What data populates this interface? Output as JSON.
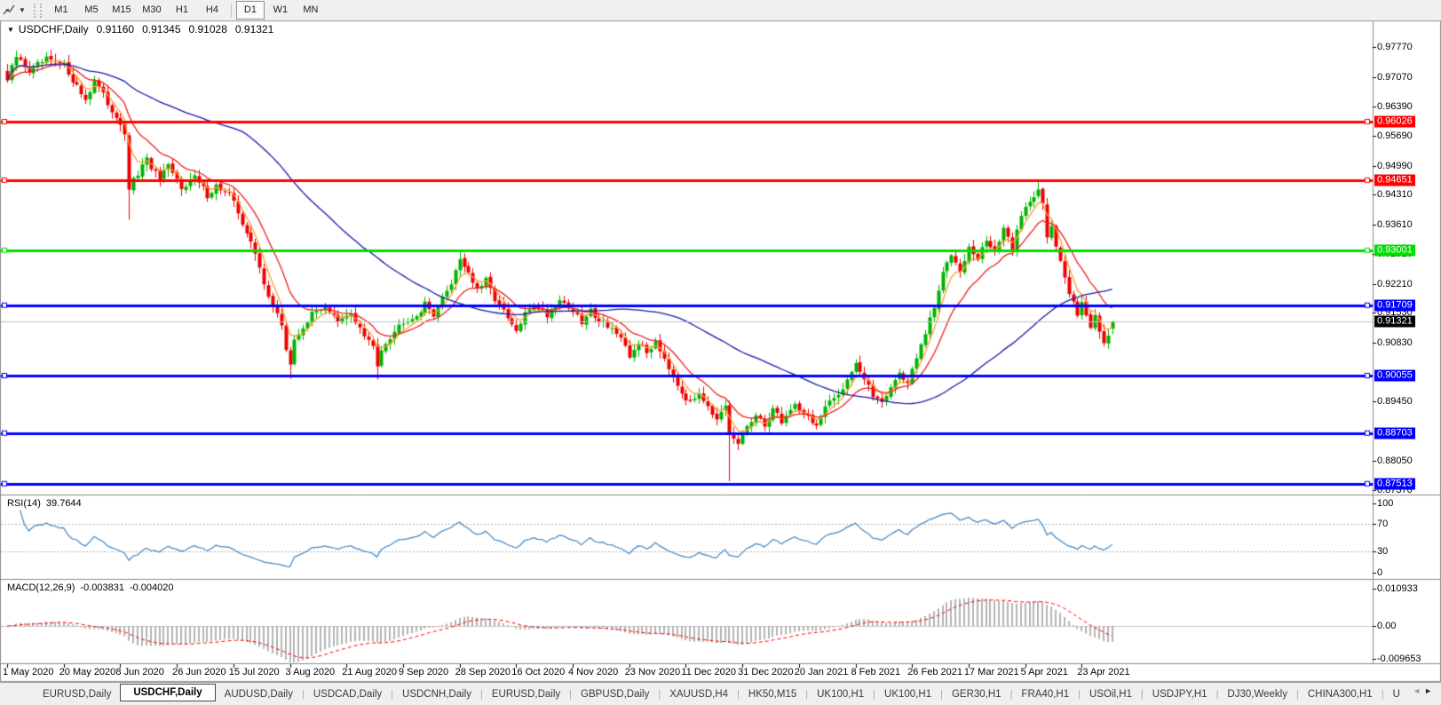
{
  "ui": {
    "toolbar": {
      "tool_icon": "line-studies",
      "timeframes": [
        "M1",
        "M5",
        "M15",
        "M30",
        "H1",
        "H4",
        "D1",
        "W1",
        "MN"
      ],
      "active_timeframe": "D1"
    },
    "title": {
      "collapse_icon": "▼",
      "symbol": "USDCHF,Daily",
      "open": "0.91160",
      "high": "0.91345",
      "low": "0.91028",
      "close": "0.91321"
    },
    "tabs": {
      "items": [
        "EURUSD,Daily",
        "USDCHF,Daily",
        "AUDUSD,Daily",
        "USDCAD,Daily",
        "USDCNH,Daily",
        "EURUSD,Daily",
        "GBPUSD,Daily",
        "XAUUSD,H4",
        "HK50,M15",
        "UK100,H1",
        "UK100,H1",
        "GER30,H1",
        "FRA40,H1",
        "USOil,H1",
        "USDJPY,H1",
        "DJ30,Weekly",
        "CHINA300,H1",
        "U"
      ],
      "active_index": 1,
      "scroll_left": "◄",
      "scroll_right": "►"
    }
  },
  "chart_data": {
    "type": "candlestick",
    "symbol": "USDCHF",
    "timeframe": "Daily",
    "current_candle": {
      "open": 0.9116,
      "high": 0.91345,
      "low": 0.91028,
      "close": 0.91321
    },
    "candle_count": 255,
    "colors": {
      "bull": "#00b400",
      "bear": "#f00000",
      "background": "#ffffff"
    },
    "close_anchors": [
      [
        0,
        0.97
      ],
      [
        2,
        0.9755
      ],
      [
        5,
        0.9722
      ],
      [
        9,
        0.9748
      ],
      [
        13,
        0.9735
      ],
      [
        16,
        0.9685
      ],
      [
        18,
        0.9655
      ],
      [
        20,
        0.97
      ],
      [
        23,
        0.9645
      ],
      [
        26,
        0.96
      ],
      [
        27,
        0.9565
      ],
      [
        28,
        0.9445
      ],
      [
        30,
        0.948
      ],
      [
        32,
        0.9512
      ],
      [
        35,
        0.9465
      ],
      [
        37,
        0.9495
      ],
      [
        40,
        0.945
      ],
      [
        43,
        0.9472
      ],
      [
        46,
        0.943
      ],
      [
        48,
        0.9452
      ],
      [
        51,
        0.943
      ],
      [
        53,
        0.939
      ],
      [
        55,
        0.9342
      ],
      [
        57,
        0.929
      ],
      [
        59,
        0.9225
      ],
      [
        61,
        0.9168
      ],
      [
        63,
        0.9125
      ],
      [
        64,
        0.9068
      ],
      [
        65,
        0.9032
      ],
      [
        66,
        0.9085
      ],
      [
        68,
        0.9122
      ],
      [
        70,
        0.9148
      ],
      [
        73,
        0.9172
      ],
      [
        76,
        0.9128
      ],
      [
        79,
        0.9152
      ],
      [
        82,
        0.9098
      ],
      [
        84,
        0.9072
      ],
      [
        85,
        0.9028
      ],
      [
        86,
        0.9072
      ],
      [
        88,
        0.9098
      ],
      [
        91,
        0.9135
      ],
      [
        94,
        0.9148
      ],
      [
        96,
        0.9172
      ],
      [
        98,
        0.9152
      ],
      [
        100,
        0.9185
      ],
      [
        102,
        0.9225
      ],
      [
        104,
        0.9282
      ],
      [
        106,
        0.9248
      ],
      [
        108,
        0.9205
      ],
      [
        110,
        0.9228
      ],
      [
        112,
        0.9188
      ],
      [
        115,
        0.9138
      ],
      [
        117,
        0.9108
      ],
      [
        119,
        0.9148
      ],
      [
        121,
        0.9175
      ],
      [
        124,
        0.9148
      ],
      [
        127,
        0.9185
      ],
      [
        130,
        0.9158
      ],
      [
        132,
        0.9128
      ],
      [
        134,
        0.9158
      ],
      [
        136,
        0.9138
      ],
      [
        139,
        0.9118
      ],
      [
        141,
        0.9088
      ],
      [
        143,
        0.9048
      ],
      [
        145,
        0.9085
      ],
      [
        147,
        0.9058
      ],
      [
        149,
        0.9088
      ],
      [
        151,
        0.9048
      ],
      [
        153,
        0.9008
      ],
      [
        155,
        0.8968
      ],
      [
        157,
        0.8938
      ],
      [
        159,
        0.8968
      ],
      [
        161,
        0.8938
      ],
      [
        163,
        0.8898
      ],
      [
        165,
        0.8928
      ],
      [
        166,
        0.8868
      ],
      [
        168,
        0.8842
      ],
      [
        170,
        0.8888
      ],
      [
        172,
        0.8908
      ],
      [
        174,
        0.8888
      ],
      [
        176,
        0.8928
      ],
      [
        178,
        0.8898
      ],
      [
        181,
        0.8938
      ],
      [
        184,
        0.8908
      ],
      [
        186,
        0.8888
      ],
      [
        188,
        0.8928
      ],
      [
        191,
        0.8962
      ],
      [
        193,
        0.8998
      ],
      [
        195,
        0.9038
      ],
      [
        197,
        0.8995
      ],
      [
        199,
        0.8958
      ],
      [
        201,
        0.8948
      ],
      [
        203,
        0.8978
      ],
      [
        205,
        0.9012
      ],
      [
        207,
        0.8988
      ],
      [
        209,
        0.9045
      ],
      [
        211,
        0.9105
      ],
      [
        213,
        0.9165
      ],
      [
        215,
        0.9245
      ],
      [
        217,
        0.9295
      ],
      [
        219,
        0.9258
      ],
      [
        221,
        0.9305
      ],
      [
        223,
        0.9278
      ],
      [
        225,
        0.9325
      ],
      [
        227,
        0.9298
      ],
      [
        229,
        0.9345
      ],
      [
        231,
        0.9308
      ],
      [
        233,
        0.9385
      ],
      [
        235,
        0.9415
      ],
      [
        237,
        0.9448
      ],
      [
        238,
        0.9415
      ],
      [
        239,
        0.933
      ],
      [
        240,
        0.9352
      ],
      [
        241,
        0.9305
      ],
      [
        242,
        0.9275
      ],
      [
        243,
        0.9235
      ],
      [
        244,
        0.9205
      ],
      [
        245,
        0.9185
      ],
      [
        246,
        0.9152
      ],
      [
        247,
        0.9175
      ],
      [
        248,
        0.9145
      ],
      [
        249,
        0.9122
      ],
      [
        250,
        0.9152
      ],
      [
        251,
        0.9112
      ],
      [
        252,
        0.9088
      ],
      [
        253,
        0.9098
      ],
      [
        254,
        0.91321
      ]
    ],
    "ohlc_overrides": [
      {
        "i": 28,
        "low": 0.9372
      },
      {
        "i": 65,
        "low": 0.8998
      },
      {
        "i": 85,
        "low": 0.8996
      },
      {
        "i": 104,
        "high": 0.9297
      },
      {
        "i": 166,
        "low": 0.8757
      },
      {
        "i": 237,
        "high": 0.94651
      },
      {
        "i": 254,
        "open": 0.9116,
        "high": 0.91345,
        "low": 0.91028,
        "close": 0.91321
      }
    ],
    "moving_averages": [
      {
        "name": "fast",
        "type": "ema",
        "period": 5,
        "color": "#ff9d2e"
      },
      {
        "name": "medium",
        "type": "ema",
        "period": 13,
        "color": "#ee2020"
      },
      {
        "name": "slow",
        "type": "sma",
        "period": 55,
        "color": "#1a1aae"
      }
    ],
    "levels": [
      {
        "price": 0.96026,
        "color": "#ff0000"
      },
      {
        "price": 0.94651,
        "color": "#ff0000"
      },
      {
        "price": 0.93001,
        "color": "#00dd00"
      },
      {
        "price": 0.91709,
        "color": "#0000ff"
      },
      {
        "price": 0.90055,
        "color": "#0000ff"
      },
      {
        "price": 0.88703,
        "color": "#0000ff"
      },
      {
        "price": 0.87513,
        "color": "#0000ff"
      }
    ],
    "current_price": {
      "value": 0.91321,
      "line_color": "#c0c0c0",
      "label_bg": "#000000"
    },
    "price_axis_ticks": [
      0.9777,
      0.9707,
      0.9639,
      0.9569,
      0.9499,
      0.9431,
      0.9361,
      0.9291,
      0.9221,
      0.9153,
      0.9083,
      0.8945,
      0.8805,
      0.8737
    ],
    "date_labels": [
      "1 May 2020",
      "20 May 2020",
      "8 Jun 2020",
      "26 Jun 2020",
      "15 Jul 2020",
      "3 Aug 2020",
      "21 Aug 2020",
      "9 Sep 2020",
      "28 Sep 2020",
      "16 Oct 2020",
      "4 Nov 2020",
      "23 Nov 2020",
      "11 Dec 2020",
      "31 Dec 2020",
      "20 Jan 2021",
      "8 Feb 2021",
      "26 Feb 2021",
      "17 Mar 2021",
      "5 Apr 2021",
      "23 Apr 2021"
    ],
    "indicators": {
      "rsi": {
        "label": "RSI(14)",
        "value": "39.7644",
        "period": 14,
        "axis_ticks": [
          100,
          70,
          30,
          0
        ],
        "dashed_levels": [
          70,
          30
        ],
        "line_color": "#3e86c6"
      },
      "macd": {
        "label": "MACD(12,26,9)",
        "value_main": "-0.003831",
        "value_signal": "-0.004020",
        "fast": 12,
        "slow": 26,
        "signal": 9,
        "axis_ticks": [
          "0.010933",
          "0.00",
          "-0.009653"
        ],
        "axis_values": [
          0.010933,
          0.0,
          -0.009653
        ],
        "histogram_color": "#b4b4b4",
        "signal_color": "#ff0000"
      }
    }
  }
}
